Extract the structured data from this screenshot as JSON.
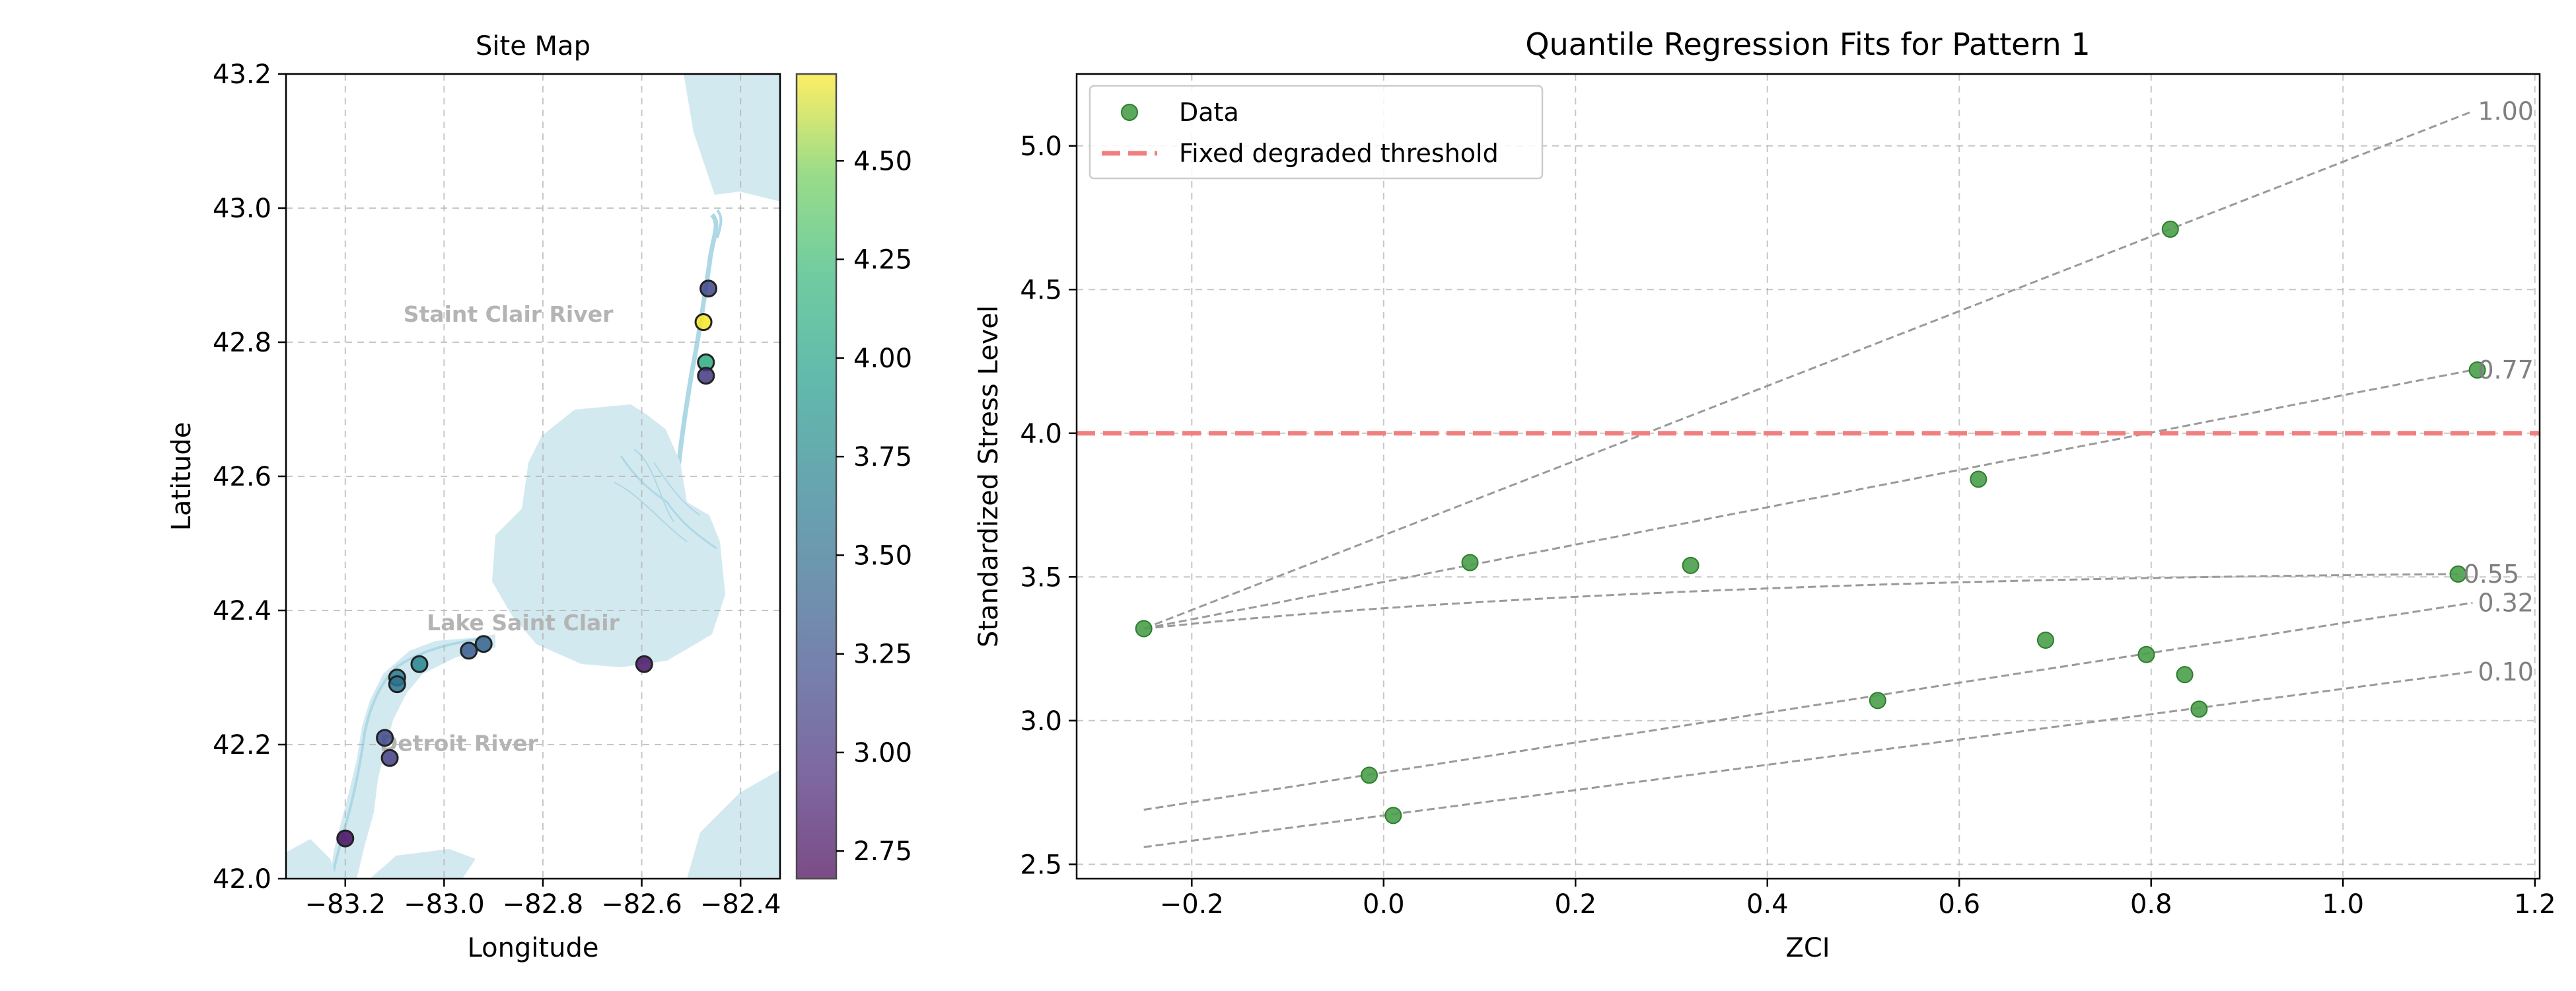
{
  "chart_data": [
    {
      "type": "scatter",
      "title": "Site Map",
      "xlabel": "Longitude",
      "ylabel": "Latitude",
      "xlim": [
        -83.32,
        -82.32
      ],
      "ylim": [
        42.0,
        43.2
      ],
      "xticks": [
        -83.2,
        -83.0,
        -82.8,
        -82.6,
        -82.4
      ],
      "xtick_labels": [
        "−83.2",
        "−83.0",
        "−82.8",
        "−82.6",
        "−82.4"
      ],
      "yticks": [
        42.0,
        42.2,
        42.4,
        42.6,
        42.8,
        43.0,
        43.2
      ],
      "ytick_labels": [
        "42.0",
        "42.2",
        "42.4",
        "42.6",
        "42.8",
        "43.0",
        "43.2"
      ],
      "grid": true,
      "annotations": [
        {
          "text": "Staint Clair River",
          "x": -82.87,
          "y": 42.84
        },
        {
          "text": "Lake Saint Clair",
          "x": -82.84,
          "y": 42.38
        },
        {
          "text": "Detroit River",
          "x": -82.97,
          "y": 42.2
        }
      ],
      "colorbar": {
        "min": 2.68,
        "max": 4.72,
        "ticks": [
          2.75,
          3.0,
          3.25,
          3.5,
          3.75,
          4.0,
          4.25,
          4.5
        ],
        "tick_labels": [
          "2.75",
          "3.00",
          "3.25",
          "3.50",
          "3.75",
          "4.00",
          "4.25",
          "4.50"
        ],
        "colormap": "viridis"
      },
      "points": [
        {
          "x": -82.465,
          "y": 42.88,
          "value": 3.15
        },
        {
          "x": -82.475,
          "y": 42.83,
          "value": 4.71
        },
        {
          "x": -82.47,
          "y": 42.77,
          "value": 4.1
        },
        {
          "x": -82.47,
          "y": 42.75,
          "value": 3.05
        },
        {
          "x": -83.095,
          "y": 42.3,
          "value": 3.6
        },
        {
          "x": -83.095,
          "y": 42.29,
          "value": 3.55
        },
        {
          "x": -83.05,
          "y": 42.32,
          "value": 3.7
        },
        {
          "x": -82.95,
          "y": 42.34,
          "value": 3.35
        },
        {
          "x": -82.92,
          "y": 42.35,
          "value": 3.4
        },
        {
          "x": -82.595,
          "y": 42.32,
          "value": 2.8
        },
        {
          "x": -83.12,
          "y": 42.21,
          "value": 3.2
        },
        {
          "x": -83.11,
          "y": 42.18,
          "value": 3.1
        },
        {
          "x": -83.2,
          "y": 42.06,
          "value": 2.75
        }
      ]
    },
    {
      "type": "scatter",
      "title": "Quantile Regression Fits for Pattern 1",
      "xlabel": "ZCI",
      "ylabel": "Standardized Stress Level",
      "xlim": [
        -0.32,
        1.205
      ],
      "ylim": [
        2.45,
        5.25
      ],
      "xticks": [
        -0.2,
        0.0,
        0.2,
        0.4,
        0.6,
        0.8,
        1.0,
        1.2
      ],
      "xtick_labels": [
        "−0.2",
        "0.0",
        "0.2",
        "0.4",
        "0.6",
        "0.8",
        "1.0",
        "1.2"
      ],
      "yticks": [
        2.5,
        3.0,
        3.5,
        4.0,
        4.5,
        5.0
      ],
      "ytick_labels": [
        "2.5",
        "3.0",
        "3.5",
        "4.0",
        "4.5",
        "5.0"
      ],
      "grid": true,
      "legend_position": "top-left",
      "legend": [
        "Data",
        "Fixed degraded threshold"
      ],
      "threshold": 4.0,
      "series": [
        {
          "name": "Data",
          "x": [
            -0.25,
            0.09,
            0.32,
            0.62,
            0.82,
            1.14,
            -0.015,
            0.01,
            0.515,
            0.69,
            0.795,
            0.835,
            0.85,
            1.12
          ],
          "y": [
            3.32,
            3.55,
            3.54,
            3.84,
            4.71,
            4.22,
            2.81,
            2.67,
            3.07,
            3.28,
            3.23,
            3.16,
            3.04,
            3.51
          ],
          "color": "#4a9e4a"
        }
      ],
      "quantile_fits": [
        {
          "label": "1.00",
          "x": [
            -0.25,
            1.135
          ],
          "y": [
            3.32,
            5.12
          ],
          "curve": "line"
        },
        {
          "label": "0.77",
          "x": [
            -0.25,
            1.135
          ],
          "y": [
            3.32,
            4.22
          ],
          "curve": "line"
        },
        {
          "label": "0.55",
          "x": [
            -0.25,
            1.12
          ],
          "y": [
            3.32,
            3.51
          ],
          "curve": "concave"
        },
        {
          "label": "0.32",
          "x": [
            -0.25,
            1.135
          ],
          "y": [
            2.69,
            3.41
          ],
          "curve": "line",
          "x_from": -0.25
        },
        {
          "label": "0.10",
          "x": [
            -0.25,
            1.135
          ],
          "y": [
            2.56,
            3.17
          ],
          "curve": "line"
        }
      ]
    }
  ]
}
